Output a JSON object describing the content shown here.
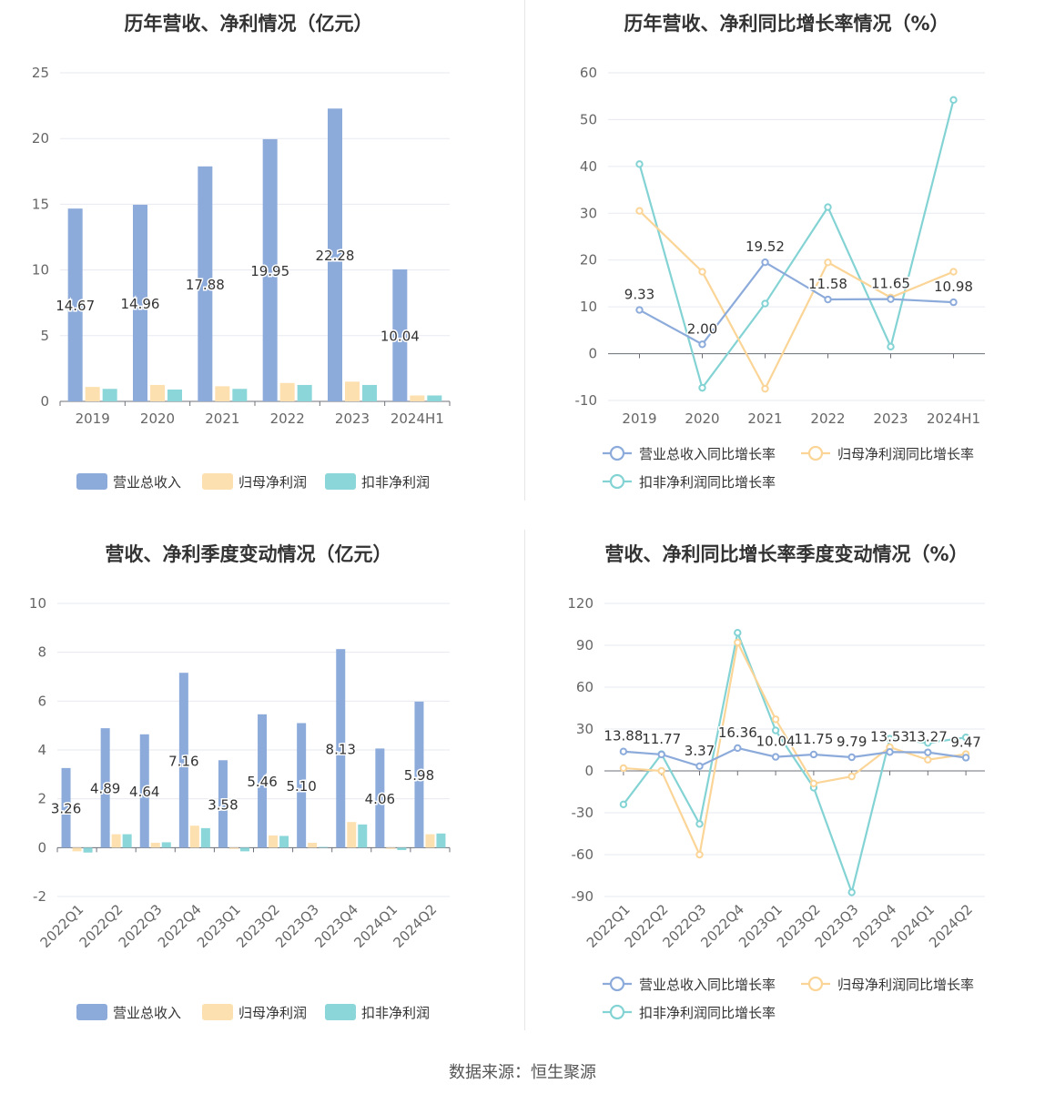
{
  "colors": {
    "revenue": "#8cabdb",
    "net_profit": "#fde0b0",
    "deducted_profit": "#8ad6d8",
    "growth_revenue": "#8cabdb",
    "growth_net": "#fbd597",
    "growth_deducted": "#84d3d4",
    "grid": "#e7eaf1",
    "axis": "#666666",
    "title": "#333333"
  },
  "footer": "数据来源：恒生聚源",
  "chart_data": [
    {
      "type": "bar",
      "title": "历年营收、净利情况（亿元）",
      "categories": [
        "2019",
        "2020",
        "2021",
        "2022",
        "2023",
        "2024H1"
      ],
      "ylim": [
        0,
        25
      ],
      "yticks": [
        0,
        5,
        10,
        15,
        20,
        25
      ],
      "series": [
        {
          "name": "营业总收入",
          "values": [
            14.67,
            14.96,
            17.88,
            19.95,
            22.28,
            10.04
          ],
          "labels": [
            "14.67",
            "14.96",
            "17.88",
            "19.95",
            "22.28",
            "10.04"
          ]
        },
        {
          "name": "归母净利润",
          "values": [
            1.1,
            1.25,
            1.15,
            1.4,
            1.5,
            0.45
          ]
        },
        {
          "name": "扣非净利润",
          "values": [
            0.95,
            0.9,
            0.95,
            1.25,
            1.25,
            0.45
          ]
        }
      ],
      "legend": "bottom"
    },
    {
      "type": "line",
      "title": "历年营收、净利同比增长率情况（%）",
      "categories": [
        "2019",
        "2020",
        "2021",
        "2022",
        "2023",
        "2024H1"
      ],
      "ylim": [
        -10,
        60
      ],
      "yticks": [
        -10,
        0,
        10,
        20,
        30,
        40,
        50,
        60
      ],
      "series": [
        {
          "name": "营业总收入同比增长率",
          "values": [
            9.33,
            2.0,
            19.52,
            11.58,
            11.65,
            10.98
          ],
          "labels": [
            "9.33",
            "2.00",
            "19.52",
            "11.58",
            "11.65",
            "10.98"
          ]
        },
        {
          "name": "归母净利润同比增长率",
          "values": [
            30.5,
            17.5,
            -7.5,
            19.5,
            12.0,
            17.5
          ]
        },
        {
          "name": "扣非净利润同比增长率",
          "values": [
            40.5,
            -7.3,
            10.7,
            31.3,
            1.5,
            54.2
          ]
        }
      ],
      "legend": "bottom"
    },
    {
      "type": "bar",
      "title": "营收、净利季度变动情况（亿元）",
      "categories": [
        "2022Q1",
        "2022Q2",
        "2022Q3",
        "2022Q4",
        "2023Q1",
        "2023Q2",
        "2023Q3",
        "2023Q4",
        "2024Q1",
        "2024Q2"
      ],
      "ylim": [
        -2,
        10
      ],
      "yticks": [
        -2,
        0,
        2,
        4,
        6,
        8,
        10
      ],
      "series": [
        {
          "name": "营业总收入",
          "values": [
            3.26,
            4.89,
            4.64,
            7.16,
            3.58,
            5.46,
            5.1,
            8.13,
            4.06,
            5.98
          ],
          "labels": [
            "3.26",
            "4.89",
            "4.64",
            "7.16",
            "3.58",
            "5.46",
            "5.10",
            "8.13",
            "4.06",
            "5.98"
          ]
        },
        {
          "name": "归母净利润",
          "values": [
            -0.15,
            0.55,
            0.2,
            0.9,
            -0.05,
            0.5,
            0.2,
            1.05,
            -0.05,
            0.55
          ]
        },
        {
          "name": "扣非净利润",
          "values": [
            -0.2,
            0.55,
            0.22,
            0.8,
            -0.15,
            0.48,
            0.03,
            0.95,
            -0.1,
            0.58
          ]
        }
      ],
      "legend": "bottom"
    },
    {
      "type": "line",
      "title": "营收、净利同比增长率季度变动情况（%）",
      "categories": [
        "2022Q1",
        "2022Q2",
        "2022Q3",
        "2022Q4",
        "2023Q1",
        "2023Q2",
        "2023Q3",
        "2023Q4",
        "2024Q1",
        "2024Q2"
      ],
      "ylim": [
        -90,
        120
      ],
      "yticks": [
        -90,
        -60,
        -30,
        0,
        30,
        60,
        90,
        120
      ],
      "series": [
        {
          "name": "营业总收入同比增长率",
          "values": [
            13.88,
            11.77,
            3.37,
            16.36,
            10.04,
            11.75,
            9.79,
            13.53,
            13.27,
            9.47
          ],
          "labels": [
            "13.88",
            "11.77",
            "3.37",
            "16.36",
            "10.04",
            "11.75",
            "9.79",
            "13.53",
            "13.27",
            "9.47"
          ]
        },
        {
          "name": "归母净利润同比增长率",
          "values": [
            2.0,
            0.0,
            -60.0,
            92.0,
            37.0,
            -9.0,
            -4.0,
            17.0,
            8.0,
            12.0
          ]
        },
        {
          "name": "扣非净利润同比增长率",
          "values": [
            -24.0,
            12.0,
            -38.0,
            99.0,
            29.0,
            -12.0,
            -87.0,
            23.0,
            20.0,
            24.0
          ]
        }
      ],
      "legend": "bottom"
    }
  ]
}
